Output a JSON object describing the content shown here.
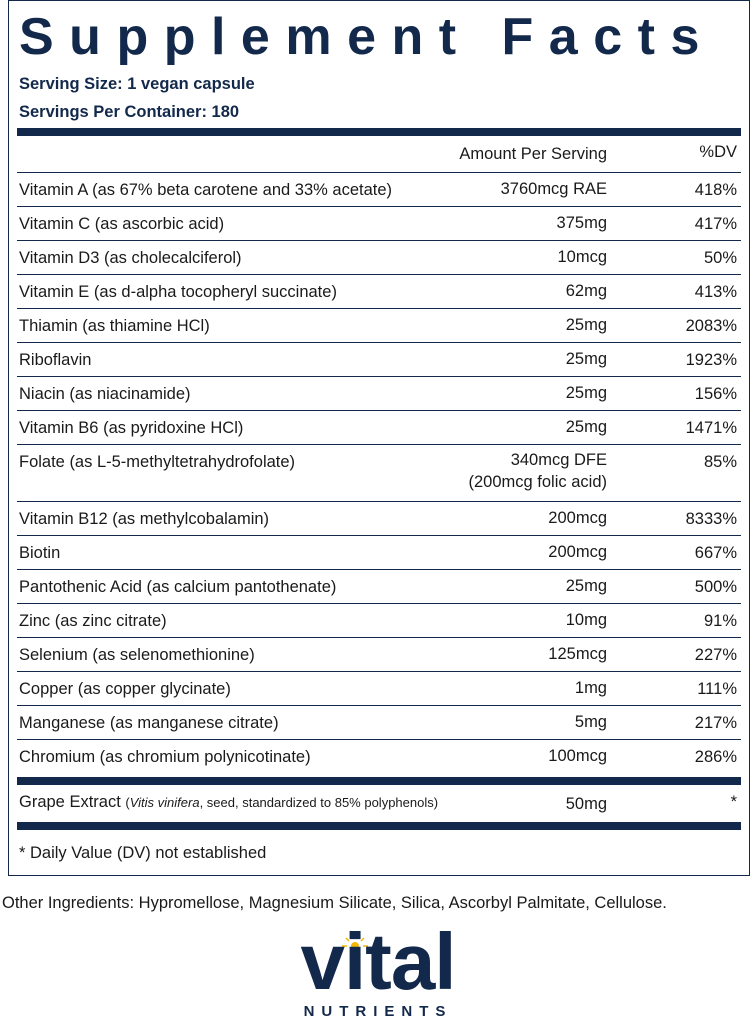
{
  "title": "Supplement Facts",
  "serving_size": "Serving Size: 1 vegan capsule",
  "servings_per_container": "Servings Per Container: 180",
  "table": {
    "header": [
      "Amount Per Serving",
      "%DV"
    ],
    "rows": [
      {
        "name": "Vitamin A (as 67% beta carotene and 33% acetate)",
        "amount": [
          "3760mcg RAE"
        ],
        "dv": "418%"
      },
      {
        "name": "Vitamin C (as ascorbic acid)",
        "amount": [
          "375mg"
        ],
        "dv": "417%"
      },
      {
        "name": "Vitamin D3 (as cholecalciferol)",
        "amount": [
          "10mcg"
        ],
        "dv": "50%"
      },
      {
        "name": "Vitamin E (as d-alpha tocopheryl succinate)",
        "amount": [
          "62mg"
        ],
        "dv": "413%"
      },
      {
        "name": "Thiamin (as thiamine HCl)",
        "amount": [
          "25mg"
        ],
        "dv": "2083%"
      },
      {
        "name": "Riboflavin",
        "amount": [
          "25mg"
        ],
        "dv": "1923%"
      },
      {
        "name": "Niacin (as niacinamide)",
        "amount": [
          "25mg"
        ],
        "dv": "156%"
      },
      {
        "name": "Vitamin B6 (as pyridoxine HCl)",
        "amount": [
          "25mg"
        ],
        "dv": "1471%"
      },
      {
        "name": "Folate (as L-5-methyltetrahydrofolate)",
        "amount": [
          "340mcg DFE",
          "(200mcg folic acid)"
        ],
        "dv": "85%"
      },
      {
        "name": "Vitamin B12 (as methylcobalamin)",
        "amount": [
          "200mcg"
        ],
        "dv": "8333%"
      },
      {
        "name": "Biotin",
        "amount": [
          "200mcg"
        ],
        "dv": "667%"
      },
      {
        "name": "Pantothenic Acid (as calcium pantothenate)",
        "amount": [
          "25mg"
        ],
        "dv": "500%"
      },
      {
        "name": "Zinc (as zinc citrate)",
        "amount": [
          "10mg"
        ],
        "dv": "91%"
      },
      {
        "name": "Selenium (as selenomethionine)",
        "amount": [
          "125mcg"
        ],
        "dv": "227%"
      },
      {
        "name": "Copper (as copper glycinate)",
        "amount": [
          "1mg"
        ],
        "dv": "111%"
      },
      {
        "name": "Manganese (as manganese citrate)",
        "amount": [
          "5mg"
        ],
        "dv": "217%"
      },
      {
        "name": "Chromium (as chromium polynicotinate)",
        "amount": [
          "100mcg"
        ],
        "dv": "286%"
      }
    ],
    "extra": {
      "name": "Grape Extract",
      "detail": [
        "(",
        "Vitis vinifera",
        ", seed, standardized to 85% polyphenols)"
      ],
      "amount": "50mg",
      "dv": "*"
    }
  },
  "footnote": "* Daily Value (DV) not established",
  "other_ingredients": "Other Ingredients: Hypromellose, Magnesium Silicate, Silica, Ascorbyl Palmitate, Cellulose.",
  "logo": {
    "word": "vital",
    "tagline": "NUTRIENTS"
  }
}
